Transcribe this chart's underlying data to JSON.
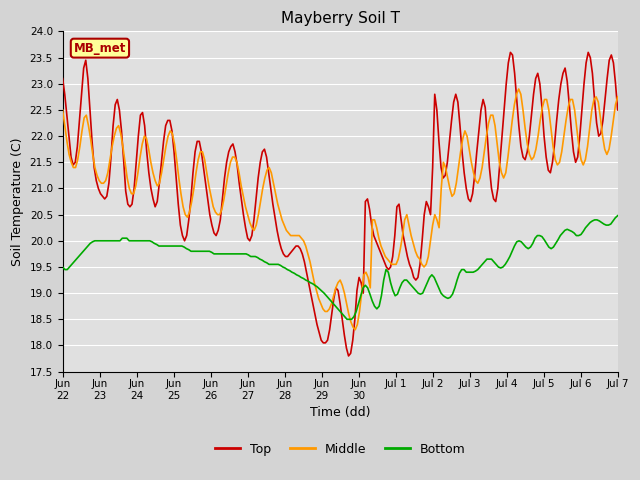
{
  "title": "Mayberry Soil T",
  "xlabel": "Time (dd)",
  "ylabel": "Soil Temperature (C)",
  "ylim": [
    17.5,
    24.0
  ],
  "yticks": [
    17.5,
    18.0,
    18.5,
    19.0,
    19.5,
    20.0,
    20.5,
    21.0,
    21.5,
    22.0,
    22.5,
    23.0,
    23.5,
    24.0
  ],
  "bg_color": "#d4d4d4",
  "plot_bg_color": "#e0e0e0",
  "label_box_text": "MB_met",
  "label_box_facecolor": "#ffff99",
  "label_box_edgecolor": "#aa0000",
  "label_box_textcolor": "#aa0000",
  "line_top_color": "#cc0000",
  "line_middle_color": "#ff9900",
  "line_bottom_color": "#00aa00",
  "line_width": 1.2,
  "xtick_labels": [
    "Jun\n22",
    "Jun\n23",
    "Jun\n24",
    "Jun\n25",
    "Jun\n26",
    "Jun\n27",
    "Jun\n28",
    "Jun\n29",
    "Jun\n30",
    "Jul 1",
    "Jul 2",
    "Jul 3",
    "Jul 4",
    "Jul 5",
    "Jul 6",
    "Jul 7"
  ],
  "top_data": [
    23.1,
    22.8,
    22.4,
    22.0,
    21.6,
    21.45,
    21.5,
    21.8,
    22.3,
    22.8,
    23.3,
    23.45,
    23.1,
    22.5,
    21.9,
    21.4,
    21.15,
    21.0,
    20.9,
    20.85,
    20.8,
    20.85,
    21.1,
    21.6,
    22.2,
    22.6,
    22.7,
    22.5,
    22.1,
    21.55,
    20.95,
    20.7,
    20.65,
    20.7,
    21.0,
    21.5,
    22.0,
    22.4,
    22.45,
    22.2,
    21.7,
    21.3,
    21.0,
    20.8,
    20.65,
    20.75,
    21.1,
    21.5,
    21.9,
    22.2,
    22.3,
    22.3,
    22.1,
    21.7,
    21.2,
    20.7,
    20.3,
    20.1,
    20.0,
    20.1,
    20.4,
    20.8,
    21.3,
    21.7,
    21.9,
    21.9,
    21.7,
    21.4,
    21.1,
    20.8,
    20.5,
    20.3,
    20.15,
    20.1,
    20.2,
    20.4,
    20.8,
    21.2,
    21.5,
    21.7,
    21.8,
    21.85,
    21.7,
    21.45,
    21.1,
    20.8,
    20.5,
    20.25,
    20.05,
    20.0,
    20.1,
    20.4,
    20.8,
    21.2,
    21.5,
    21.7,
    21.75,
    21.6,
    21.3,
    21.0,
    20.7,
    20.45,
    20.2,
    20.0,
    19.85,
    19.75,
    19.7,
    19.7,
    19.75,
    19.8,
    19.85,
    19.9,
    19.9,
    19.85,
    19.75,
    19.6,
    19.4,
    19.2,
    19.0,
    18.8,
    18.6,
    18.4,
    18.25,
    18.1,
    18.05,
    18.05,
    18.1,
    18.3,
    18.6,
    18.9,
    19.1,
    19.05,
    18.8,
    18.5,
    18.2,
    17.95,
    17.8,
    17.85,
    18.1,
    18.5,
    19.05,
    19.3,
    19.2,
    19.0,
    20.75,
    20.8,
    20.6,
    20.3,
    20.1,
    20.0,
    19.9,
    19.8,
    19.7,
    19.6,
    19.5,
    19.45,
    19.5,
    19.7,
    20.1,
    20.65,
    20.7,
    20.4,
    20.1,
    19.9,
    19.7,
    19.55,
    19.45,
    19.3,
    19.25,
    19.3,
    19.55,
    20.0,
    20.5,
    20.75,
    20.65,
    20.5,
    21.4,
    22.8,
    22.5,
    21.9,
    21.4,
    21.2,
    21.25,
    21.5,
    21.9,
    22.3,
    22.65,
    22.8,
    22.65,
    22.2,
    21.7,
    21.3,
    21.0,
    20.8,
    20.75,
    20.9,
    21.25,
    21.7,
    22.1,
    22.5,
    22.7,
    22.55,
    22.0,
    21.4,
    21.0,
    20.8,
    20.75,
    21.0,
    21.5,
    22.0,
    22.5,
    23.0,
    23.4,
    23.6,
    23.55,
    23.2,
    22.7,
    22.2,
    21.8,
    21.6,
    21.55,
    21.7,
    22.0,
    22.4,
    22.8,
    23.1,
    23.2,
    23.0,
    22.55,
    22.0,
    21.6,
    21.35,
    21.3,
    21.5,
    21.85,
    22.3,
    22.7,
    23.0,
    23.2,
    23.3,
    23.05,
    22.6,
    22.1,
    21.7,
    21.5,
    21.6,
    22.0,
    22.5,
    23.0,
    23.4,
    23.6,
    23.5,
    23.2,
    22.7,
    22.25,
    22.0,
    22.05,
    22.3,
    22.7,
    23.1,
    23.45,
    23.55,
    23.4,
    23.0,
    22.5
  ],
  "middle_data": [
    22.5,
    22.2,
    21.9,
    21.65,
    21.5,
    21.4,
    21.4,
    21.55,
    21.8,
    22.1,
    22.35,
    22.4,
    22.2,
    21.95,
    21.65,
    21.4,
    21.25,
    21.15,
    21.1,
    21.1,
    21.15,
    21.3,
    21.55,
    21.8,
    22.0,
    22.15,
    22.2,
    22.05,
    21.8,
    21.5,
    21.2,
    21.0,
    20.9,
    20.9,
    21.05,
    21.3,
    21.6,
    21.85,
    22.0,
    21.95,
    21.75,
    21.5,
    21.3,
    21.15,
    21.05,
    21.1,
    21.3,
    21.55,
    21.8,
    22.0,
    22.1,
    22.05,
    21.85,
    21.55,
    21.2,
    20.9,
    20.65,
    20.5,
    20.45,
    20.55,
    20.75,
    21.0,
    21.3,
    21.55,
    21.7,
    21.7,
    21.55,
    21.3,
    21.05,
    20.85,
    20.65,
    20.55,
    20.5,
    20.5,
    20.6,
    20.8,
    21.05,
    21.3,
    21.5,
    21.6,
    21.6,
    21.5,
    21.3,
    21.05,
    20.85,
    20.65,
    20.5,
    20.35,
    20.25,
    20.2,
    20.3,
    20.5,
    20.75,
    21.0,
    21.2,
    21.35,
    21.4,
    21.3,
    21.1,
    20.9,
    20.7,
    20.55,
    20.4,
    20.3,
    20.2,
    20.15,
    20.1,
    20.1,
    20.1,
    20.1,
    20.1,
    20.05,
    20.0,
    19.9,
    19.75,
    19.6,
    19.4,
    19.2,
    19.05,
    18.9,
    18.8,
    18.7,
    18.65,
    18.65,
    18.7,
    18.8,
    18.95,
    19.1,
    19.2,
    19.25,
    19.15,
    19.0,
    18.8,
    18.6,
    18.45,
    18.35,
    18.3,
    18.4,
    18.65,
    19.0,
    19.35,
    19.4,
    19.3,
    19.1,
    20.4,
    20.4,
    20.25,
    20.05,
    19.9,
    19.8,
    19.7,
    19.65,
    19.6,
    19.55,
    19.55,
    19.55,
    19.65,
    19.85,
    20.1,
    20.4,
    20.5,
    20.3,
    20.1,
    19.95,
    19.8,
    19.7,
    19.65,
    19.55,
    19.5,
    19.55,
    19.7,
    20.0,
    20.3,
    20.5,
    20.4,
    20.25,
    21.0,
    21.5,
    21.4,
    21.2,
    21.0,
    20.85,
    20.9,
    21.1,
    21.4,
    21.7,
    21.95,
    22.1,
    22.0,
    21.75,
    21.5,
    21.3,
    21.15,
    21.1,
    21.2,
    21.4,
    21.7,
    22.0,
    22.25,
    22.4,
    22.4,
    22.2,
    21.85,
    21.5,
    21.3,
    21.2,
    21.3,
    21.6,
    21.95,
    22.3,
    22.6,
    22.8,
    22.9,
    22.8,
    22.5,
    22.15,
    21.85,
    21.65,
    21.55,
    21.6,
    21.75,
    22.0,
    22.3,
    22.55,
    22.7,
    22.7,
    22.5,
    22.15,
    21.8,
    21.55,
    21.45,
    21.5,
    21.7,
    22.0,
    22.3,
    22.55,
    22.7,
    22.7,
    22.5,
    22.15,
    21.8,
    21.55,
    21.45,
    21.55,
    21.8,
    22.15,
    22.5,
    22.7,
    22.75,
    22.65,
    22.35,
    22.0,
    21.75,
    21.65,
    21.75,
    22.0,
    22.3,
    22.6,
    22.75
  ],
  "bottom_data": [
    19.5,
    19.45,
    19.45,
    19.5,
    19.55,
    19.6,
    19.65,
    19.7,
    19.75,
    19.8,
    19.85,
    19.9,
    19.95,
    19.98,
    20.0,
    20.0,
    20.0,
    20.0,
    20.0,
    20.0,
    20.0,
    20.0,
    20.0,
    20.0,
    20.0,
    20.0,
    20.05,
    20.05,
    20.05,
    20.0,
    20.0,
    20.0,
    20.0,
    20.0,
    20.0,
    20.0,
    20.0,
    20.0,
    20.0,
    19.98,
    19.95,
    19.93,
    19.9,
    19.9,
    19.9,
    19.9,
    19.9,
    19.9,
    19.9,
    19.9,
    19.9,
    19.9,
    19.9,
    19.88,
    19.85,
    19.83,
    19.8,
    19.8,
    19.8,
    19.8,
    19.8,
    19.8,
    19.8,
    19.8,
    19.8,
    19.78,
    19.75,
    19.75,
    19.75,
    19.75,
    19.75,
    19.75,
    19.75,
    19.75,
    19.75,
    19.75,
    19.75,
    19.75,
    19.75,
    19.75,
    19.75,
    19.73,
    19.7,
    19.7,
    19.7,
    19.68,
    19.65,
    19.63,
    19.6,
    19.58,
    19.55,
    19.55,
    19.55,
    19.55,
    19.55,
    19.53,
    19.5,
    19.48,
    19.45,
    19.43,
    19.4,
    19.38,
    19.35,
    19.33,
    19.3,
    19.28,
    19.25,
    19.23,
    19.2,
    19.18,
    19.15,
    19.12,
    19.08,
    19.04,
    19.0,
    18.95,
    18.9,
    18.85,
    18.8,
    18.75,
    18.7,
    18.65,
    18.6,
    18.55,
    18.5,
    18.5,
    18.5,
    18.55,
    18.65,
    18.8,
    18.95,
    19.1,
    19.15,
    19.1,
    18.98,
    18.85,
    18.75,
    18.7,
    18.75,
    18.95,
    19.25,
    19.45,
    19.4,
    19.2,
    19.05,
    18.95,
    18.98,
    19.1,
    19.2,
    19.25,
    19.25,
    19.2,
    19.15,
    19.1,
    19.05,
    19.0,
    18.98,
    19.0,
    19.1,
    19.2,
    19.3,
    19.35,
    19.3,
    19.2,
    19.1,
    19.0,
    18.95,
    18.92,
    18.9,
    18.92,
    18.98,
    19.1,
    19.25,
    19.38,
    19.45,
    19.45,
    19.4,
    19.4,
    19.4,
    19.4,
    19.42,
    19.45,
    19.5,
    19.55,
    19.6,
    19.65,
    19.65,
    19.65,
    19.6,
    19.55,
    19.5,
    19.48,
    19.5,
    19.55,
    19.62,
    19.7,
    19.8,
    19.9,
    19.98,
    20.0,
    19.98,
    19.93,
    19.88,
    19.85,
    19.88,
    19.95,
    20.05,
    20.1,
    20.1,
    20.08,
    20.02,
    19.95,
    19.88,
    19.85,
    19.88,
    19.95,
    20.02,
    20.1,
    20.15,
    20.2,
    20.22,
    20.2,
    20.18,
    20.15,
    20.1,
    20.1,
    20.12,
    20.18,
    20.25,
    20.3,
    20.35,
    20.38,
    20.4,
    20.4,
    20.38,
    20.35,
    20.32,
    20.3,
    20.3,
    20.32,
    20.38,
    20.44,
    20.48
  ]
}
